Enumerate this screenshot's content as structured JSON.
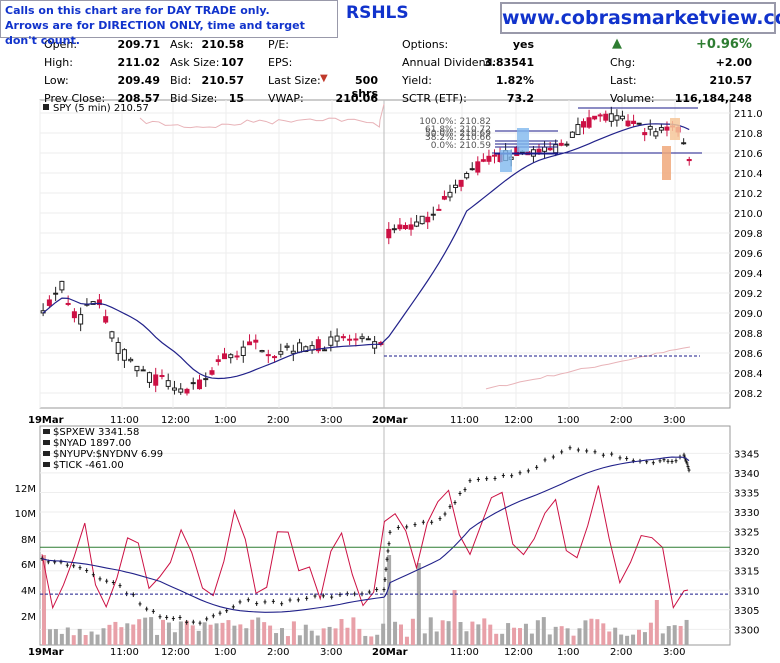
{
  "notice": {
    "line1": "Calls on this chart are for DAY TRADE only.",
    "line2": "Arrows are for DIRECTION ONLY, time and target don't count."
  },
  "website": "www.cobrasmarketview.com",
  "symbol_fragment": "RSHLS",
  "quote": {
    "open_label": "Open:",
    "open": "209.71",
    "high_label": "High:",
    "high": "211.02",
    "low_label": "Low:",
    "low": "209.49",
    "prevclose_label": "Prev Close:",
    "prevclose": "208.57",
    "ask_label": "Ask:",
    "ask": "210.58",
    "asksize_label": "Ask Size:",
    "asksize": "107",
    "bid_label": "Bid:",
    "bid": "210.57",
    "bidsize_label": "Bid Size:",
    "bidsize": "15",
    "pe_label": "P/E:",
    "eps_label": "EPS:",
    "lastsize_label": "Last Size:",
    "lastsize": "500 shrs",
    "vwap_label": "VWAP:",
    "vwap": "210.06",
    "options_label": "Options:",
    "options": "yes",
    "dividend_label": "Annual Dividend:",
    "dividend": "3.83541",
    "yield_label": "Yield:",
    "yield": "1.82%",
    "sctr_label": "SCTR (ETF):",
    "sctr": "73.2",
    "pct_change": "+0.96%",
    "chg_label": "Chg:",
    "chg": "+2.00",
    "last_label": "Last:",
    "last": "210.57",
    "volume_label": "Volume:",
    "volume": "116,184,248",
    "up_color": "#2e7d32",
    "down_color": "#c0392b"
  },
  "chart_data": [
    {
      "type": "candlestick",
      "legend": "SPY (5 min) 210.57",
      "interval": "5 min",
      "y_ticks": [
        208.2,
        208.4,
        208.6,
        208.8,
        209.0,
        209.2,
        209.4,
        209.6,
        209.8,
        210.0,
        210.2,
        210.4,
        210.6,
        210.8,
        211.0
      ],
      "ylim": [
        208.05,
        211.13
      ],
      "x_ticks": [
        "19Mar",
        "11:00",
        "12:00",
        "1:00",
        "2:00",
        "3:00",
        "20Mar",
        "11:00",
        "12:00",
        "1:00",
        "2:00",
        "3:00"
      ],
      "reference_line": 208.57,
      "fib_labels": [
        "100.0%: 210.82",
        "61.8%: 210.72",
        "50.0%: 210.69",
        "38.2%: 210.66",
        "0.0%: 210.59"
      ],
      "price_path_day1": [
        209.0,
        209.3,
        208.9,
        209.2,
        208.7,
        208.5,
        208.35,
        208.3,
        208.2,
        208.3,
        208.55,
        208.6,
        208.7,
        208.6,
        208.65,
        208.65,
        208.7,
        208.75,
        208.7,
        208.65
      ],
      "price_path_day2": [
        209.8,
        209.85,
        209.9,
        210.05,
        210.2,
        210.4,
        210.5,
        210.55,
        210.6,
        210.62,
        210.6,
        210.7,
        210.85,
        210.95,
        210.95,
        210.9,
        210.85,
        210.8,
        210.9,
        210.57
      ],
      "ma_series": "blue moving average",
      "colors": {
        "up": "#222222",
        "down": "#cc1144",
        "ma": "#22228a",
        "ref": "#1a1a8a",
        "fib": "#1a1a8a"
      }
    },
    {
      "type": "line",
      "legend": [
        "$SPXEW 3341.58",
        "$NYAD 1897.00",
        "$NYUPV:$NYDNV 6.99",
        "$TICK -461.00"
      ],
      "right_ticks": [
        3300,
        3305,
        3310,
        3315,
        3320,
        3325,
        3330,
        3335,
        3340,
        3345
      ],
      "left_ticks": [
        "2M",
        "4M",
        "6M",
        "8M",
        "10M",
        "12M"
      ],
      "x_ticks": [
        "19Mar",
        "11:00",
        "12:00",
        "1:00",
        "2:00",
        "3:00",
        "20Mar",
        "11:00",
        "12:00",
        "1:00",
        "2:00",
        "3:00"
      ],
      "reference_lines": [
        3321,
        3309
      ],
      "colors": {
        "price": "#111111",
        "ma": "#22228a",
        "tick": "#cc1144",
        "ref_green": "#2e7d32",
        "ref_blue": "#1a1a8a",
        "vol_gray": "#a9a9a9",
        "vol_pink": "#e8a0a8"
      }
    }
  ]
}
